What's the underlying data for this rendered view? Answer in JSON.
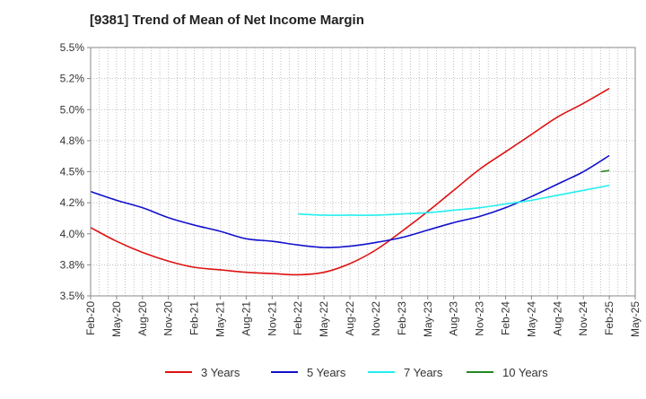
{
  "chart_data": {
    "type": "line",
    "title": "[9381]  Trend of Mean of Net Income Margin",
    "xlabel": "",
    "ylabel": "",
    "x_ticks": [
      "Feb-20",
      "May-20",
      "Aug-20",
      "Nov-20",
      "Feb-21",
      "May-21",
      "Aug-21",
      "Nov-21",
      "Feb-22",
      "May-22",
      "Aug-22",
      "Nov-22",
      "Feb-23",
      "May-23",
      "Aug-23",
      "Nov-23",
      "Feb-24",
      "May-24",
      "Aug-24",
      "Nov-24",
      "Feb-25",
      "May-25"
    ],
    "y_ticks": [
      "3.5%",
      "3.8%",
      "4.0%",
      "4.2%",
      "4.5%",
      "4.8%",
      "5.0%",
      "5.2%",
      "5.5%"
    ],
    "ylim": [
      3.5,
      5.5
    ],
    "grid": true,
    "legend_position": "bottom",
    "series": [
      {
        "name": "3 Years",
        "color": "#dd1111",
        "x": [
          "Feb-20",
          "May-20",
          "Aug-20",
          "Nov-20",
          "Feb-21",
          "May-21",
          "Aug-21",
          "Nov-21",
          "Feb-22",
          "May-22",
          "Aug-22",
          "Nov-22",
          "Feb-23",
          "May-23",
          "Aug-23",
          "Nov-23",
          "Feb-24",
          "May-24",
          "Aug-24",
          "Nov-24",
          "Feb-25"
        ],
        "values": [
          4.05,
          3.94,
          3.85,
          3.78,
          3.73,
          3.71,
          3.69,
          3.68,
          3.67,
          3.69,
          3.76,
          3.87,
          4.02,
          4.18,
          4.35,
          4.52,
          4.66,
          4.8,
          4.94,
          5.05,
          5.17
        ]
      },
      {
        "name": "5 Years",
        "color": "#1111cc",
        "x": [
          "Feb-20",
          "May-20",
          "Aug-20",
          "Nov-20",
          "Feb-21",
          "May-21",
          "Aug-21",
          "Nov-21",
          "Feb-22",
          "May-22",
          "Aug-22",
          "Nov-22",
          "Feb-23",
          "May-23",
          "Aug-23",
          "Nov-23",
          "Feb-24",
          "May-24",
          "Aug-24",
          "Nov-24",
          "Feb-25"
        ],
        "values": [
          4.34,
          4.27,
          4.21,
          4.13,
          4.07,
          4.02,
          3.96,
          3.94,
          3.91,
          3.89,
          3.9,
          3.93,
          3.97,
          4.03,
          4.09,
          4.14,
          4.21,
          4.3,
          4.4,
          4.5,
          4.63
        ]
      },
      {
        "name": "7 Years",
        "color": "#22eeee",
        "x": [
          "Feb-22",
          "May-22",
          "Aug-22",
          "Nov-22",
          "Feb-23",
          "May-23",
          "Aug-23",
          "Nov-23",
          "Feb-24",
          "May-24",
          "Aug-24",
          "Nov-24",
          "Feb-25"
        ],
        "values": [
          4.16,
          4.15,
          4.15,
          4.15,
          4.16,
          4.17,
          4.19,
          4.21,
          4.24,
          4.27,
          4.31,
          4.35,
          4.39
        ]
      },
      {
        "name": "10 Years",
        "color": "#228822",
        "x": [
          "Jan-25",
          "Feb-25"
        ],
        "values": [
          4.5,
          4.51
        ]
      }
    ]
  }
}
